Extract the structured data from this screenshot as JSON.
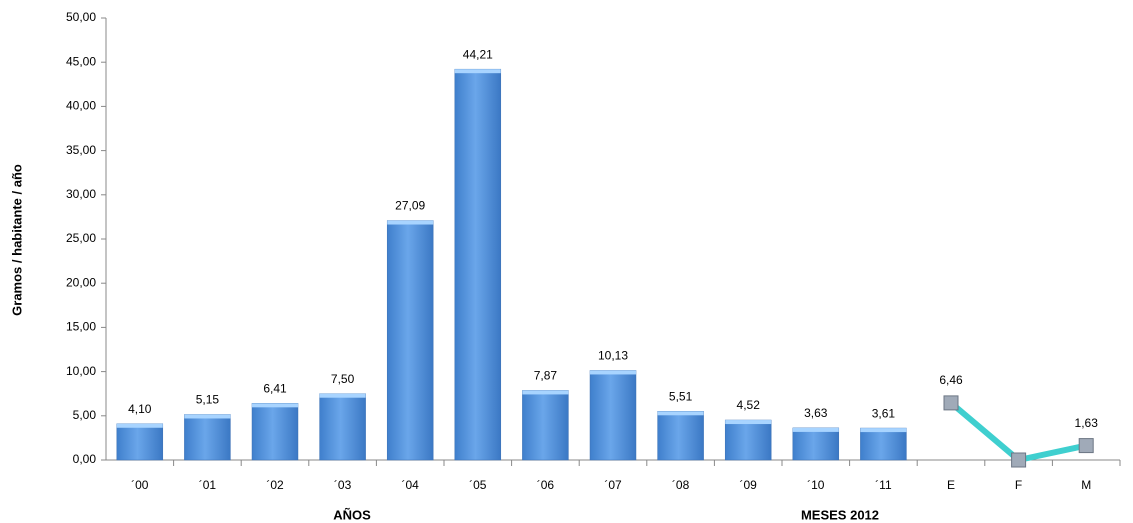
{
  "chart_data": {
    "type": "bar",
    "y_label": "Gramos / habitante / año",
    "x_group_labels": [
      "AÑOS",
      "MESES 2012"
    ],
    "categories": [
      "´00",
      "´01",
      "´02",
      "´03",
      "´04",
      "´05",
      "´06",
      "´07",
      "´08",
      "´09",
      "´10",
      "´11",
      "E",
      "F",
      "M"
    ],
    "series": [
      {
        "type": "bar",
        "color": "#5b9be0",
        "values": [
          4.1,
          5.15,
          6.41,
          7.5,
          27.09,
          44.21,
          7.87,
          10.13,
          5.51,
          4.52,
          3.63,
          3.61,
          null,
          null,
          null
        ],
        "value_labels": [
          "4,10",
          "5,15",
          "6,41",
          "7,50",
          "27,09",
          "44,21",
          "7,87",
          "10,13",
          "5,51",
          "4,52",
          "3,63",
          "3,61",
          null,
          null,
          null
        ]
      },
      {
        "type": "line",
        "color": "#3fcfcf",
        "values": [
          null,
          null,
          null,
          null,
          null,
          null,
          null,
          null,
          null,
          null,
          null,
          null,
          6.46,
          0,
          1.63
        ],
        "value_labels": [
          null,
          null,
          null,
          null,
          null,
          null,
          null,
          null,
          null,
          null,
          null,
          null,
          "6,46",
          null,
          "1,63"
        ]
      }
    ],
    "ylim": [
      0,
      50
    ],
    "yticks": [
      {
        "value": 0,
        "label": "0,00"
      },
      {
        "value": 5,
        "label": "5,00"
      },
      {
        "value": 10,
        "label": "10,00"
      },
      {
        "value": 15,
        "label": "15,00"
      },
      {
        "value": 20,
        "label": "20,00"
      },
      {
        "value": 25,
        "label": "25,00"
      },
      {
        "value": 30,
        "label": "30,00"
      },
      {
        "value": 35,
        "label": "35,00"
      },
      {
        "value": 40,
        "label": "40,00"
      },
      {
        "value": 45,
        "label": "45,00"
      },
      {
        "value": 50,
        "label": "50,00"
      }
    ],
    "grid": false
  }
}
